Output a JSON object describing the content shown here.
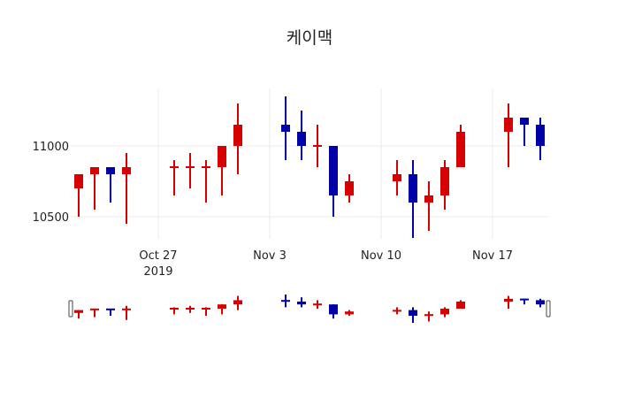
{
  "chart_data": {
    "type": "candlestick",
    "title": "케이맥",
    "xlabel": "",
    "ylabel": "",
    "ylim": [
      10310,
      11510
    ],
    "y_ticks": [
      10500,
      11000
    ],
    "y_tick_labels": [
      "10500",
      "11000"
    ],
    "x_ticks": [
      "2019-10-27",
      "2019-11-03",
      "2019-11-10",
      "2019-11-17"
    ],
    "x_tick_labels": [
      "Oct 27\n2019",
      "Nov 3",
      "Nov 10",
      "Nov 17"
    ],
    "grid": true,
    "increasing_color": "#d60000",
    "decreasing_color": "#0000a8",
    "rangeslider": true,
    "x": [
      "2019-10-22",
      "2019-10-23",
      "2019-10-24",
      "2019-10-25",
      "2019-10-28",
      "2019-10-29",
      "2019-10-30",
      "2019-10-31",
      "2019-11-01",
      "2019-11-04",
      "2019-11-05",
      "2019-11-06",
      "2019-11-07",
      "2019-11-08",
      "2019-11-11",
      "2019-11-12",
      "2019-11-13",
      "2019-11-14",
      "2019-11-15",
      "2019-11-18",
      "2019-11-19",
      "2019-11-20"
    ],
    "open": [
      10700,
      10800,
      10850,
      10800,
      10850,
      10850,
      10850,
      10850,
      11000,
      11150,
      11100,
      11000,
      11000,
      10650,
      10750,
      10800,
      10600,
      10650,
      10850,
      11100,
      11200,
      11150
    ],
    "high": [
      10800,
      10850,
      10850,
      10950,
      10900,
      10950,
      10900,
      11000,
      11300,
      11350,
      11250,
      11150,
      11000,
      10800,
      10900,
      10900,
      10750,
      10900,
      11150,
      11300,
      11200,
      11200
    ],
    "low": [
      10500,
      10550,
      10600,
      10450,
      10650,
      10700,
      10600,
      10650,
      10800,
      10900,
      10900,
      10850,
      10500,
      10600,
      10650,
      10350,
      10400,
      10550,
      10850,
      10850,
      11000,
      10900
    ],
    "close": [
      10800,
      10850,
      10800,
      10850,
      10850,
      10850,
      10850,
      11000,
      11150,
      11100,
      11000,
      11000,
      10650,
      10750,
      10800,
      10600,
      10650,
      10850,
      11100,
      11200,
      11150,
      11000
    ]
  },
  "labels": {
    "title": "케이맥",
    "y_11000": "11000",
    "y_10500": "10500",
    "x_oct27": "Oct 27",
    "x_year": "2019",
    "x_nov3": "Nov 3",
    "x_nov10": "Nov 10",
    "x_nov17": "Nov 17"
  }
}
